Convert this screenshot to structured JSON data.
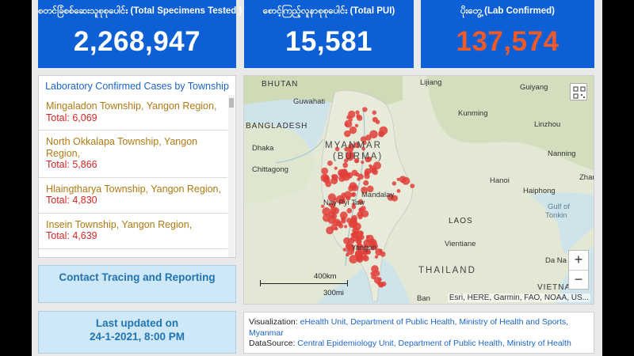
{
  "kpis": [
    {
      "title": "စတင်ခြံစစ်ဆေးသူစုစုပေါင်း (Total Specimens Tested )",
      "value": "2,268,947",
      "color": "#ffffff"
    },
    {
      "title": "စောင့်ကြည့်လူနာစုစုပေါင်း (Total PUI)",
      "value": "15,581",
      "color": "#ffffff"
    },
    {
      "title": "ပိုးတွေ့ (Lab Confirmed)",
      "value": "137,574",
      "color": "#f05a28"
    }
  ],
  "township_panel": {
    "title": "Laboratory Confirmed Cases by Township",
    "items": [
      {
        "name": "Mingaladon Township, Yangon Region,",
        "total": "Total: 6,069"
      },
      {
        "name": "North Okkalapa Township, Yangon Region,",
        "total": "Total: 5,866"
      },
      {
        "name": "Hlaingtharya Township, Yangon Region,",
        "total": "Total: 4,830"
      },
      {
        "name": "Insein Township, Yangon Region,",
        "total": "Total: 4,639"
      }
    ]
  },
  "contact_button": {
    "label": "Contact Tracing and Reporting"
  },
  "updated": {
    "line1": "Last updated on",
    "line2": "24-1-2021, 8:00 PM"
  },
  "map": {
    "labels": {
      "bhutan": "BHUTAN",
      "guwahati": "Guwahati",
      "bangladesh": "BANGLADESH",
      "dhaka": "Dhaka",
      "chittagong": "Chittagong",
      "myanmar": "MYANMAR",
      "burma": "(BURMA)",
      "mandalay": "Mandalay",
      "naypyitaw": "Nay Pyi Taw",
      "yangon": "Yangon",
      "lijiang": "Lijiang",
      "guiyang": "Guiyang",
      "kunming": "Kunming",
      "linzhou": "Linzhou",
      "nanning": "Nanning",
      "hanoi": "Hanoi",
      "haiphong": "Haiphong",
      "gulf1": "Gulf of",
      "gulf2": "Tonkin",
      "laos": "LAOS",
      "vientiane": "Vientiane",
      "thailand": "THAILAND",
      "danang": "Da Na",
      "vietnam": "VIETNAM",
      "bangkok": "Ban",
      "zhan": "Zhar"
    },
    "scale_km": "400km",
    "scale_mi": "300mi",
    "attribution": "Esri, HERE, Garmin, FAO, NOAA, US...",
    "zoom_in": "+",
    "zoom_out": "−",
    "icons": [
      "qr-code-icon"
    ],
    "marker_color": "#e0403a"
  },
  "credits": {
    "viz_label": "Visualization: ",
    "viz_text": "eHealth Unit, Department of Public Health, Ministry of Health and Sports, Myanmar",
    "src_label": "DataSource: ",
    "src_text": "Central Epidemiology Unit, Department of Public Health, Ministry of Health"
  }
}
